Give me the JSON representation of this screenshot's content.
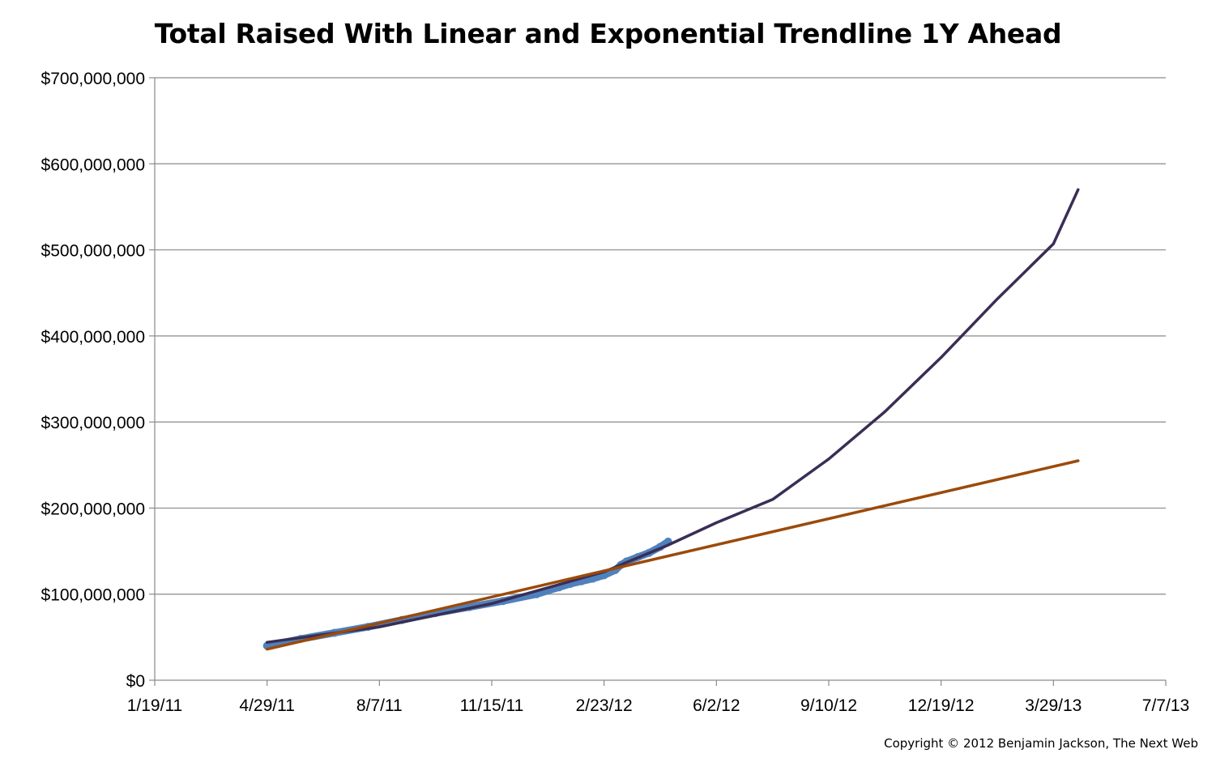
{
  "chart_data": {
    "type": "line",
    "title": "Total Raised With Linear and Exponential Trendline 1Y Ahead",
    "xlabel": "",
    "ylabel": "",
    "x_ticks": [
      "1/19/11",
      "4/29/11",
      "8/7/11",
      "11/15/11",
      "2/23/12",
      "6/2/12",
      "9/10/12",
      "12/19/12",
      "3/29/13",
      "7/7/13"
    ],
    "y_ticks": [
      "$0",
      "$100,000,000",
      "$200,000,000",
      "$300,000,000",
      "$400,000,000",
      "$500,000,000",
      "$600,000,000",
      "$700,000,000"
    ],
    "xlim": [
      "2011-01-19",
      "2013-07-07"
    ],
    "ylim": [
      0,
      700000000
    ],
    "grid": true,
    "legend": "none",
    "series": [
      {
        "key": "total-raised",
        "style": "solid",
        "color": "#4f81bd",
        "points": [
          [
            "2011-04-29",
            40000000
          ],
          [
            "2011-05-29",
            48000000
          ],
          [
            "2011-06-28",
            55000000
          ],
          [
            "2011-07-28",
            62000000
          ],
          [
            "2011-08-27",
            70000000
          ],
          [
            "2011-09-26",
            78000000
          ],
          [
            "2011-10-26",
            85000000
          ],
          [
            "2011-11-25",
            92000000
          ],
          [
            "2011-12-25",
            100000000
          ],
          [
            "2012-01-14",
            108000000
          ],
          [
            "2012-01-24",
            112000000
          ],
          [
            "2012-02-03",
            115000000
          ],
          [
            "2012-02-13",
            118000000
          ],
          [
            "2012-02-23",
            122000000
          ],
          [
            "2012-03-04",
            128000000
          ],
          [
            "2012-03-09",
            134000000
          ],
          [
            "2012-03-14",
            138000000
          ],
          [
            "2012-03-24",
            143000000
          ],
          [
            "2012-04-03",
            148000000
          ],
          [
            "2012-04-13",
            155000000
          ],
          [
            "2012-04-20",
            161000000
          ]
        ]
      },
      {
        "key": "exponential-trendline",
        "style": "dashed",
        "color": "#3a2e55",
        "points": [
          [
            "2011-04-29",
            44000000
          ],
          [
            "2011-08-07",
            62000000
          ],
          [
            "2011-11-15",
            89000000
          ],
          [
            "2012-02-23",
            126000000
          ],
          [
            "2012-04-20",
            157000000
          ],
          [
            "2012-06-02",
            183000000
          ],
          [
            "2012-07-22",
            210000000
          ],
          [
            "2012-09-10",
            257000000
          ],
          [
            "2012-10-30",
            312000000
          ],
          [
            "2012-12-19",
            375000000
          ],
          [
            "2013-02-07",
            443000000
          ],
          [
            "2013-03-29",
            507000000
          ],
          [
            "2013-04-20",
            570000000
          ]
        ]
      },
      {
        "key": "linear-trendline",
        "style": "dashed",
        "color": "#9c4a0a",
        "points": [
          [
            "2011-04-29",
            36000000
          ],
          [
            "2013-04-20",
            255000000
          ]
        ]
      }
    ]
  },
  "footer": {
    "copyright": "Copyright © 2012 Benjamin Jackson, The Next Web"
  }
}
